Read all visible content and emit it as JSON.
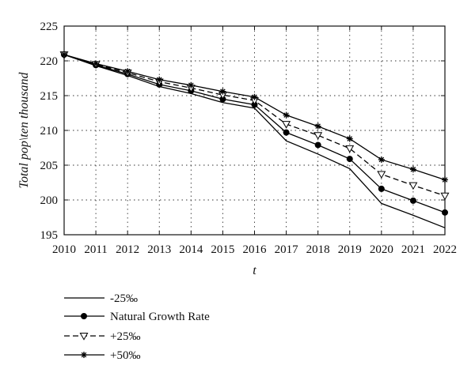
{
  "chart_data": {
    "type": "line",
    "xlabel": "t",
    "ylabel": "Total pop\\ten thousand",
    "x": [
      2010,
      2011,
      2012,
      2013,
      2014,
      2015,
      2016,
      2017,
      2018,
      2019,
      2020,
      2021,
      2022
    ],
    "xlim": [
      2010,
      2022
    ],
    "ylim": [
      195,
      225
    ],
    "yticks": [
      195,
      200,
      205,
      210,
      215,
      220,
      225
    ],
    "grid": true,
    "legend_position": "bottom-left, below plot",
    "series": [
      {
        "name": "-25‰",
        "marker": "none",
        "dash": "solid",
        "values": [
          220.9,
          219.3,
          217.9,
          216.3,
          215.3,
          214.0,
          213.2,
          208.5,
          206.6,
          204.5,
          199.5,
          197.8,
          196.0
        ]
      },
      {
        "name": "Natural Growth Rate",
        "marker": "circle",
        "dash": "solid",
        "values": [
          220.9,
          219.4,
          218.1,
          216.6,
          215.7,
          214.5,
          213.7,
          209.7,
          207.9,
          205.9,
          201.6,
          199.9,
          198.2
        ]
      },
      {
        "name": "+25‰",
        "marker": "triangle-down",
        "dash": "dashed",
        "values": [
          220.9,
          219.5,
          218.3,
          217.0,
          216.1,
          215.1,
          214.3,
          210.9,
          209.3,
          207.4,
          203.7,
          202.1,
          200.6
        ]
      },
      {
        "name": "+50‰",
        "marker": "asterisk",
        "dash": "solid",
        "values": [
          220.9,
          219.6,
          218.5,
          217.3,
          216.5,
          215.6,
          214.8,
          212.2,
          210.6,
          208.8,
          205.8,
          204.4,
          202.9
        ]
      }
    ]
  }
}
